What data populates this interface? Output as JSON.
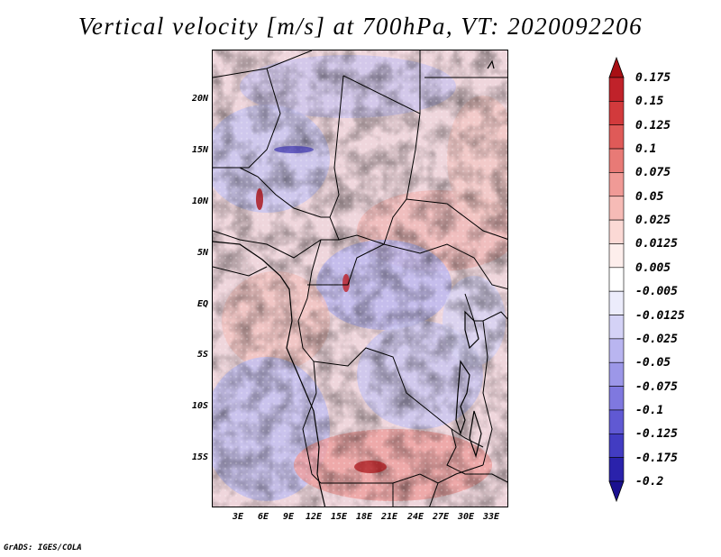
{
  "title": "Vertical velocity [m/s] at 700hPa, VT: 2020092206",
  "credit": "GrADS: IGES/COLA",
  "latitude_labels": [
    "20N",
    "15N",
    "10N",
    "5N",
    "EQ",
    "5S",
    "10S",
    "15S"
  ],
  "longitude_labels": [
    "3E",
    "6E",
    "9E",
    "12E",
    "15E",
    "18E",
    "21E",
    "24E",
    "27E",
    "30E",
    "33E"
  ],
  "colorbar": {
    "labels": [
      "0.175",
      "0.15",
      "0.125",
      "0.1",
      "0.075",
      "0.05",
      "0.025",
      "0.0125",
      "0.005",
      "-0.005",
      "-0.0125",
      "-0.025",
      "-0.05",
      "-0.075",
      "-0.1",
      "-0.125",
      "-0.175",
      "-0.2"
    ],
    "colors": [
      "#a80f14",
      "#c0222a",
      "#d23a3c",
      "#df5a58",
      "#e87a76",
      "#f09a96",
      "#f6bbb6",
      "#fbd9d5",
      "#fdeeec",
      "#ffffff",
      "#ececfb",
      "#d4d2f6",
      "#b9b5f0",
      "#9c97e8",
      "#7f78df",
      "#6059d3",
      "#423cc2",
      "#2a22ab",
      "#1a1090"
    ]
  }
}
